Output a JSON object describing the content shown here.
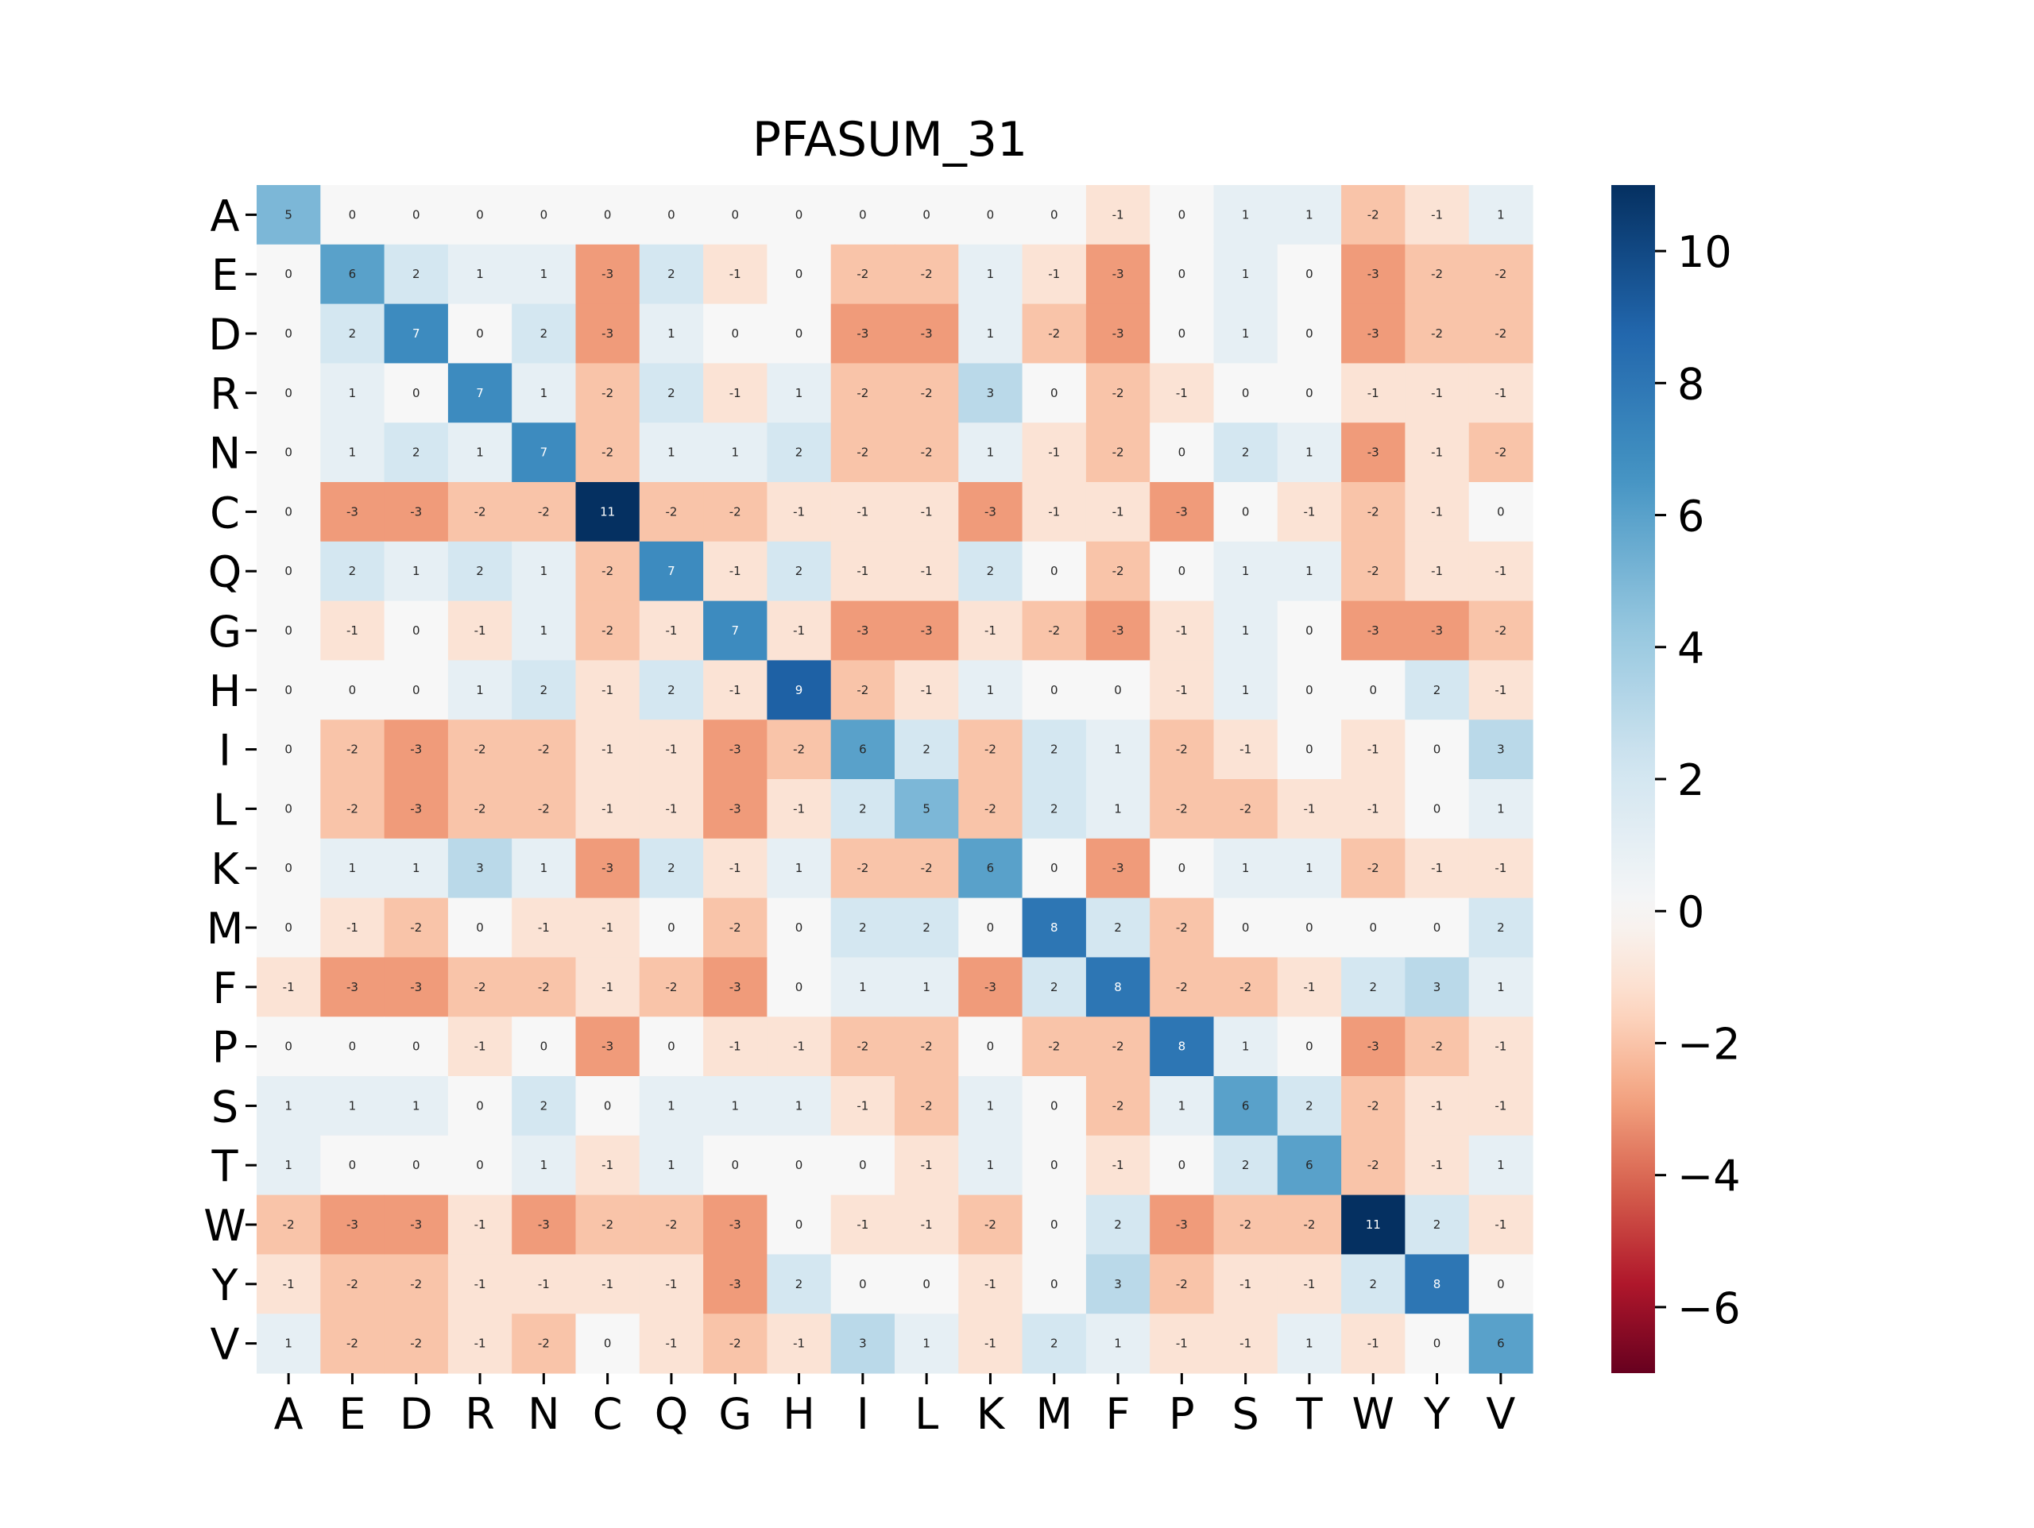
{
  "chart_data": {
    "type": "heatmap",
    "title": "PFASUM_31",
    "xlabel": "",
    "ylabel": "",
    "row_labels": [
      "A",
      "E",
      "D",
      "R",
      "N",
      "C",
      "Q",
      "G",
      "H",
      "I",
      "L",
      "K",
      "M",
      "F",
      "P",
      "S",
      "T",
      "W",
      "Y",
      "V"
    ],
    "col_labels": [
      "A",
      "E",
      "D",
      "R",
      "N",
      "C",
      "Q",
      "G",
      "H",
      "I",
      "L",
      "K",
      "M",
      "F",
      "P",
      "S",
      "T",
      "W",
      "Y",
      "V"
    ],
    "values": [
      [
        5,
        0,
        0,
        0,
        0,
        0,
        0,
        0,
        0,
        0,
        0,
        0,
        0,
        -1,
        0,
        1,
        1,
        -2,
        -1,
        1
      ],
      [
        0,
        6,
        2,
        1,
        1,
        -3,
        2,
        -1,
        0,
        -2,
        -2,
        1,
        -1,
        -3,
        0,
        1,
        0,
        -3,
        -2,
        -2
      ],
      [
        0,
        2,
        7,
        0,
        2,
        -3,
        1,
        0,
        0,
        -3,
        -3,
        1,
        -2,
        -3,
        0,
        1,
        0,
        -3,
        -2,
        -2
      ],
      [
        0,
        1,
        0,
        7,
        1,
        -2,
        2,
        -1,
        1,
        -2,
        -2,
        3,
        0,
        -2,
        -1,
        0,
        0,
        -1,
        -1,
        -1
      ],
      [
        0,
        1,
        2,
        1,
        7,
        -2,
        1,
        1,
        2,
        -2,
        -2,
        1,
        -1,
        -2,
        0,
        2,
        1,
        -3,
        -1,
        -2
      ],
      [
        0,
        -3,
        -3,
        -2,
        -2,
        11,
        -2,
        -2,
        -1,
        -1,
        -1,
        -3,
        -1,
        -1,
        -3,
        0,
        -1,
        -2,
        -1,
        0
      ],
      [
        0,
        2,
        1,
        2,
        1,
        -2,
        7,
        -1,
        2,
        -1,
        -1,
        2,
        0,
        -2,
        0,
        1,
        1,
        -2,
        -1,
        -1
      ],
      [
        0,
        -1,
        0,
        -1,
        1,
        -2,
        -1,
        7,
        -1,
        -3,
        -3,
        -1,
        -2,
        -3,
        -1,
        1,
        0,
        -3,
        -3,
        -2
      ],
      [
        0,
        0,
        0,
        1,
        2,
        -1,
        2,
        -1,
        9,
        -2,
        -1,
        1,
        0,
        0,
        -1,
        1,
        0,
        0,
        2,
        -1
      ],
      [
        0,
        -2,
        -3,
        -2,
        -2,
        -1,
        -1,
        -3,
        -2,
        6,
        2,
        -2,
        2,
        1,
        -2,
        -1,
        0,
        -1,
        0,
        3
      ],
      [
        0,
        -2,
        -3,
        -2,
        -2,
        -1,
        -1,
        -3,
        -1,
        2,
        5,
        -2,
        2,
        1,
        -2,
        -2,
        -1,
        -1,
        0,
        1
      ],
      [
        0,
        1,
        1,
        3,
        1,
        -3,
        2,
        -1,
        1,
        -2,
        -2,
        6,
        0,
        -3,
        0,
        1,
        1,
        -2,
        -1,
        -1
      ],
      [
        0,
        -1,
        -2,
        0,
        -1,
        -1,
        0,
        -2,
        0,
        2,
        2,
        0,
        8,
        2,
        -2,
        0,
        0,
        0,
        0,
        2
      ],
      [
        -1,
        -3,
        -3,
        -2,
        -2,
        -1,
        -2,
        -3,
        0,
        1,
        1,
        -3,
        2,
        8,
        -2,
        -2,
        -1,
        2,
        3,
        1
      ],
      [
        0,
        0,
        0,
        -1,
        0,
        -3,
        0,
        -1,
        -1,
        -2,
        -2,
        0,
        -2,
        -2,
        8,
        1,
        0,
        -3,
        -2,
        -1
      ],
      [
        1,
        1,
        1,
        0,
        2,
        0,
        1,
        1,
        1,
        -1,
        -2,
        1,
        0,
        -2,
        1,
        6,
        2,
        -2,
        -1,
        -1
      ],
      [
        1,
        0,
        0,
        0,
        1,
        -1,
        1,
        0,
        0,
        0,
        -1,
        1,
        0,
        -1,
        0,
        2,
        6,
        -2,
        -1,
        1
      ],
      [
        -2,
        -3,
        -3,
        -1,
        -3,
        -2,
        -2,
        -3,
        0,
        -1,
        -1,
        -2,
        0,
        2,
        -3,
        -2,
        -2,
        11,
        2,
        -1
      ],
      [
        -1,
        -2,
        -2,
        -1,
        -1,
        -1,
        -1,
        -3,
        2,
        0,
        0,
        -1,
        0,
        3,
        -2,
        -1,
        -1,
        2,
        8,
        0
      ],
      [
        1,
        -2,
        -2,
        -1,
        -2,
        0,
        -1,
        -2,
        -1,
        3,
        1,
        -1,
        2,
        1,
        -1,
        -1,
        1,
        -1,
        0,
        6
      ]
    ],
    "vmin": -7,
    "vmax": 11,
    "colormap": "RdBu",
    "colorbar": {
      "ticks": [
        -6,
        -4,
        -2,
        0,
        2,
        4,
        6,
        8,
        10
      ],
      "tick_labels": [
        "−6",
        "−4",
        "−2",
        "0",
        "2",
        "4",
        "6",
        "8",
        "10"
      ]
    },
    "annotations": true,
    "grid": false,
    "legend": "colorbar-right"
  }
}
